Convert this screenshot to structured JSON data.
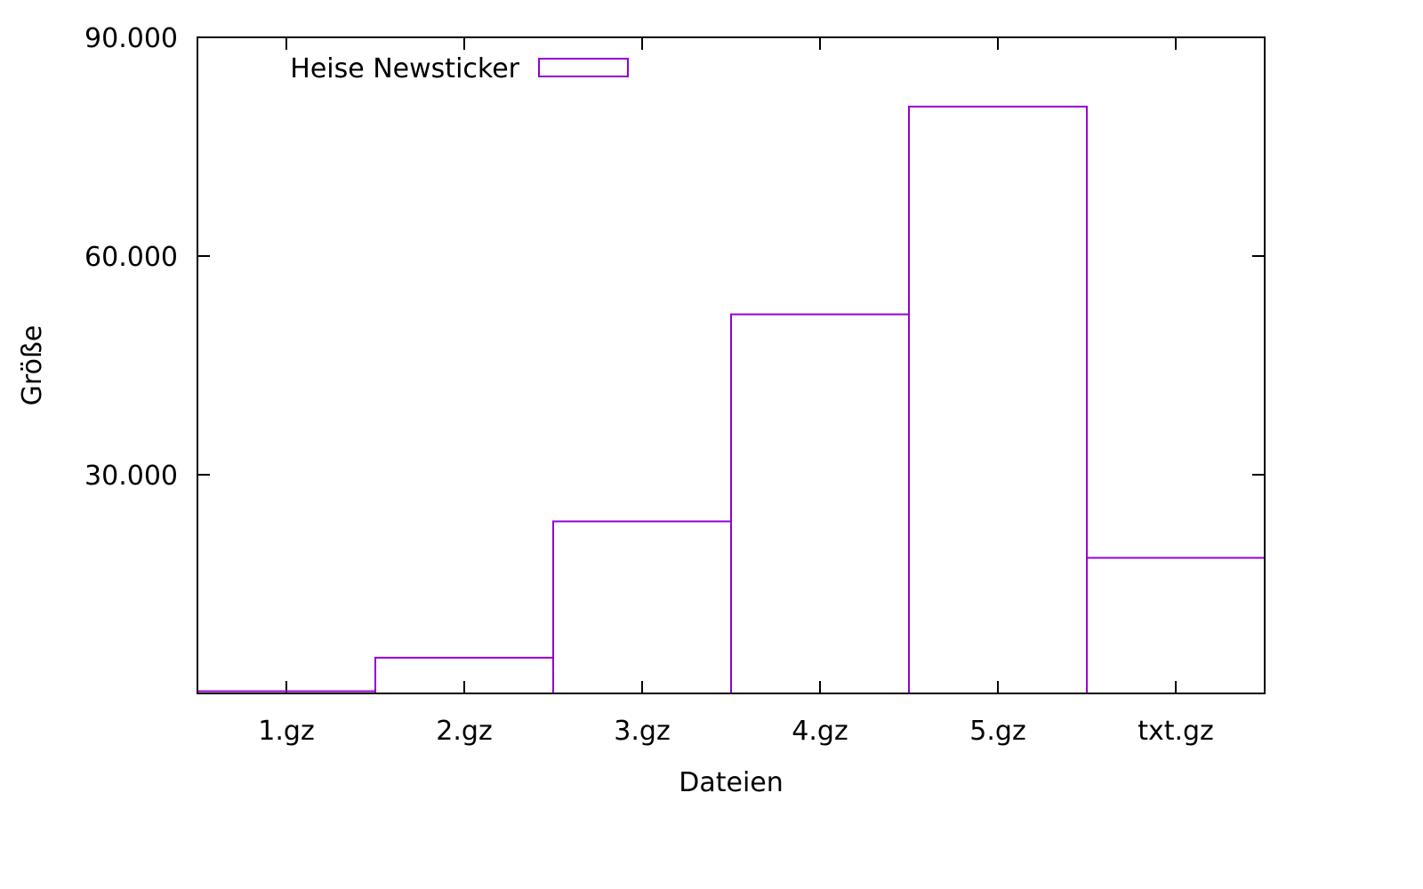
{
  "chart_data": {
    "type": "bar",
    "style": "step-histogram",
    "categories": [
      "1.gz",
      "2.gz",
      "3.gz",
      "4.gz",
      "5.gz",
      "txt.gz"
    ],
    "series": [
      {
        "name": "Heise Newsticker",
        "values": [
          300,
          4900,
          23600,
          52000,
          80500,
          18600
        ],
        "color": "#9400d3"
      }
    ],
    "xlabel": "Dateien",
    "ylabel": "Größe",
    "ylim": [
      0,
      90000
    ],
    "yticks": [
      {
        "value": 30000,
        "label": "30.000"
      },
      {
        "value": 60000,
        "label": "60.000"
      },
      {
        "value": 90000,
        "label": "90.000"
      }
    ],
    "grid": false,
    "legend": "top-left"
  }
}
